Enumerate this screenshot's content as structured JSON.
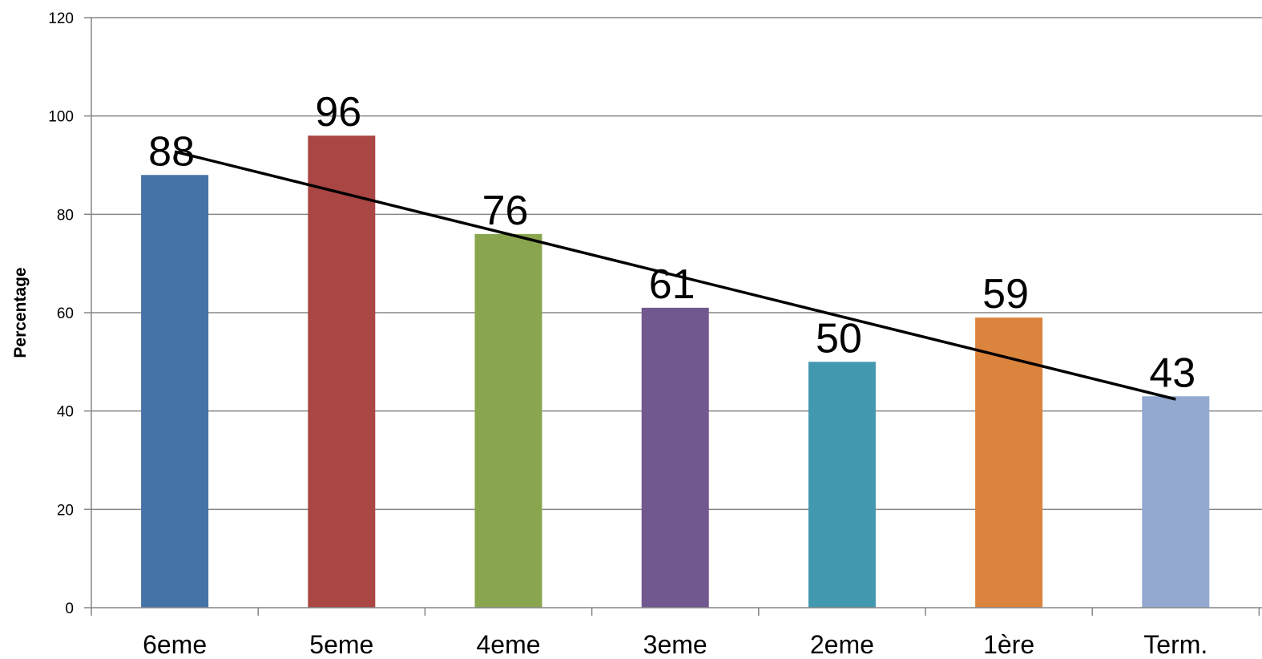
{
  "chart_data": {
    "type": "bar",
    "title": "",
    "xlabel": "",
    "ylabel": "Percentage",
    "ylim": [
      0,
      120
    ],
    "yticks": [
      0,
      20,
      40,
      60,
      80,
      100,
      120
    ],
    "grid": true,
    "legend": "none",
    "categories": [
      "6eme",
      "5eme",
      "4eme",
      "3eme",
      "2eme",
      "1ère",
      "Term."
    ],
    "values": [
      88,
      96,
      76,
      61,
      50,
      59,
      43
    ],
    "data_labels": [
      "88",
      "96",
      "76",
      "61",
      "50",
      "59",
      "43"
    ],
    "colors": [
      "#4673A7",
      "#AA4644",
      "#89A54E",
      "#71588F",
      "#4298AF",
      "#DB843D",
      "#93A9CF"
    ],
    "trendline": {
      "type": "linear",
      "color": "#000000"
    },
    "gridline_color": "#868686",
    "axis_color": "#868686"
  }
}
